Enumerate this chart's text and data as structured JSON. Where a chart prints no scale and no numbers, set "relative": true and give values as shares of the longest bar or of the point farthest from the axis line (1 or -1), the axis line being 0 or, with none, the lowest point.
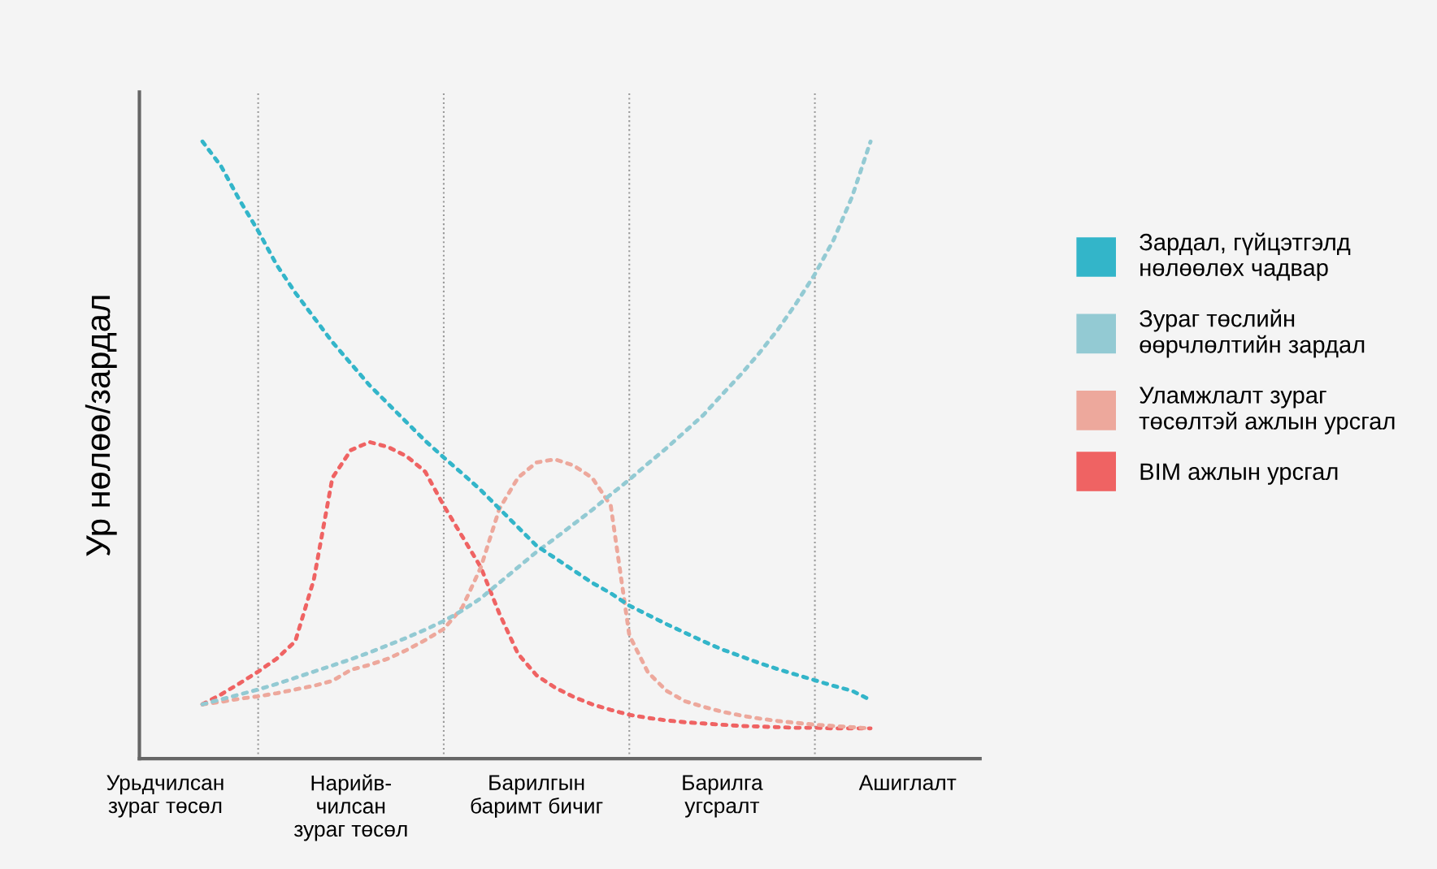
{
  "chart_data": {
    "type": "line",
    "relative": true,
    "ylabel": "Ур нөлөө/зардал",
    "categories": [
      "Урьдчилсан\nзураг төсөл",
      null,
      null,
      null,
      null,
      null,
      null,
      null,
      null,
      null,
      "Нарийв-\nчилсан\nзураг төсөл",
      null,
      null,
      null,
      null,
      null,
      null,
      null,
      null,
      null,
      "Барилгын\nбаримт бичиг",
      null,
      null,
      null,
      null,
      null,
      null,
      null,
      null,
      null,
      "Барилга\nугсралт",
      null,
      null,
      null,
      null,
      null,
      null,
      null,
      null,
      null,
      "Ашиглалт"
    ],
    "line_style": "dotted",
    "legend": "right",
    "grid": "x",
    "series": [
      {
        "name": "Зардал, гүйцэтгэлд\nнөлөөлөх чадвар",
        "color": "#33b5c9",
        "values": [
          null,
          null,
          1.0,
          0.96,
          0.905,
          0.855,
          0.8,
          0.755,
          0.715,
          0.675,
          0.64,
          0.605,
          0.575,
          0.545,
          0.515,
          0.488,
          0.462,
          0.435,
          0.405,
          0.375,
          0.345,
          0.325,
          0.305,
          0.285,
          0.268,
          0.248,
          0.233,
          0.218,
          0.204,
          0.19,
          0.177,
          0.166,
          0.155,
          0.145,
          0.136,
          0.127,
          0.118,
          0.11,
          0.095,
          null,
          null
        ]
      },
      {
        "name": "Зураг төслийн\nөөрчлөлтийн зардал",
        "color": "#93cad3",
        "values": [
          null,
          null,
          0.088,
          0.096,
          0.104,
          0.112,
          0.121,
          0.131,
          0.141,
          0.151,
          0.161,
          0.172,
          0.184,
          0.196,
          0.209,
          0.223,
          0.24,
          0.26,
          0.285,
          0.31,
          0.335,
          0.357,
          0.38,
          0.403,
          0.428,
          0.452,
          0.478,
          0.503,
          0.53,
          0.557,
          0.59,
          0.622,
          0.657,
          0.695,
          0.738,
          0.785,
          0.84,
          0.91,
          1.0,
          null,
          null
        ]
      },
      {
        "name": "Уламжлалт зураг\nтөсөлтэй ажлын урсгал",
        "color": "#eda89c",
        "values": [
          null,
          null,
          0.088,
          0.092,
          0.097,
          0.101,
          0.106,
          0.112,
          0.118,
          0.126,
          0.144,
          0.152,
          0.162,
          0.176,
          0.192,
          0.21,
          0.245,
          0.31,
          0.405,
          0.455,
          0.48,
          0.485,
          0.475,
          0.455,
          0.41,
          0.2,
          0.14,
          0.11,
          0.093,
          0.084,
          0.076,
          0.07,
          0.065,
          0.061,
          0.058,
          0.055,
          0.053,
          0.051,
          0.049,
          null,
          null
        ]
      },
      {
        "name": "BIM ажлын урсгал",
        "color": "#ef6363",
        "values": [
          null,
          null,
          0.088,
          0.104,
          0.122,
          0.141,
          0.162,
          0.19,
          0.29,
          0.455,
          0.5,
          0.513,
          0.505,
          0.49,
          0.465,
          0.41,
          0.36,
          0.31,
          0.235,
          0.17,
          0.135,
          0.115,
          0.1,
          0.088,
          0.079,
          0.071,
          0.066,
          0.062,
          0.059,
          0.057,
          0.055,
          0.053,
          0.052,
          0.051,
          0.05,
          0.05,
          0.049,
          0.049,
          0.049,
          null,
          null
        ]
      }
    ]
  }
}
